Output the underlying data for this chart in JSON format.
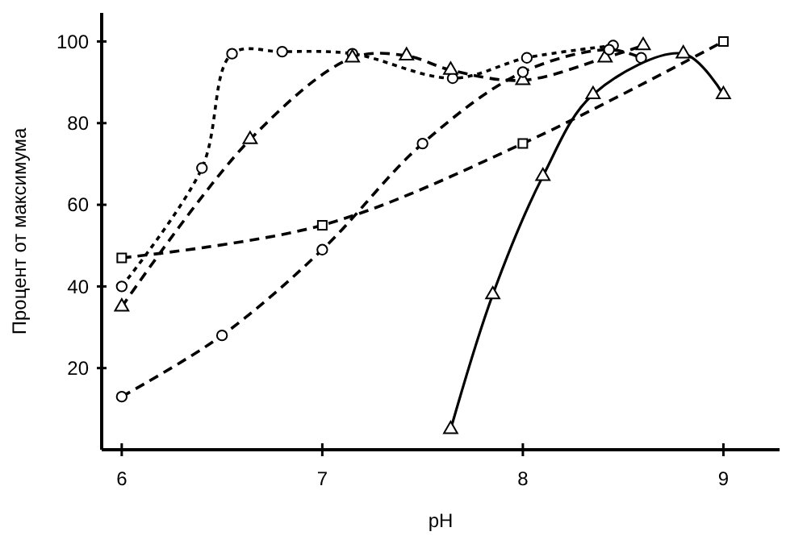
{
  "chart_data": {
    "type": "line",
    "xlabel": "pH",
    "ylabel": "Процент от максимума",
    "xlim": [
      5.9,
      9.28
    ],
    "ylim": [
      0,
      107
    ],
    "xticks": [
      6,
      7,
      8,
      9
    ],
    "yticks": [
      20,
      40,
      60,
      80,
      100
    ],
    "grid": false,
    "series": [
      {
        "color": "#000000",
        "marker": "circle",
        "line_style": "dotted",
        "x": [
          6,
          6.4,
          6.55,
          6.8,
          7.15,
          7.65,
          8.02,
          8.45
        ],
        "values": [
          40,
          69,
          97,
          97.5,
          97,
          91,
          96,
          99
        ]
      },
      {
        "color": "#000000",
        "marker": "triangle",
        "line_style": "dashed",
        "x": [
          6,
          6.64,
          7.15,
          7.42,
          7.64,
          8.0,
          8.41,
          8.6
        ],
        "values": [
          35,
          76,
          96,
          96.5,
          93,
          90.5,
          96,
          99
        ]
      },
      {
        "color": "#000000",
        "marker": "square",
        "line_style": "dashed",
        "x": [
          6,
          7,
          8,
          9
        ],
        "values": [
          47,
          55,
          75,
          100
        ]
      },
      {
        "color": "#000000",
        "marker": "circle",
        "line_style": "dashed",
        "x": [
          6,
          6.5,
          7,
          7.5,
          8,
          8.43,
          8.59
        ],
        "values": [
          13,
          28,
          49,
          75,
          92.5,
          98,
          96
        ]
      },
      {
        "color": "#000000",
        "marker": "triangle",
        "line_style": "solid",
        "x": [
          7.64,
          7.85,
          8.1,
          8.35,
          8.8,
          9
        ],
        "values": [
          5,
          38,
          67,
          87,
          97,
          87
        ]
      }
    ]
  }
}
